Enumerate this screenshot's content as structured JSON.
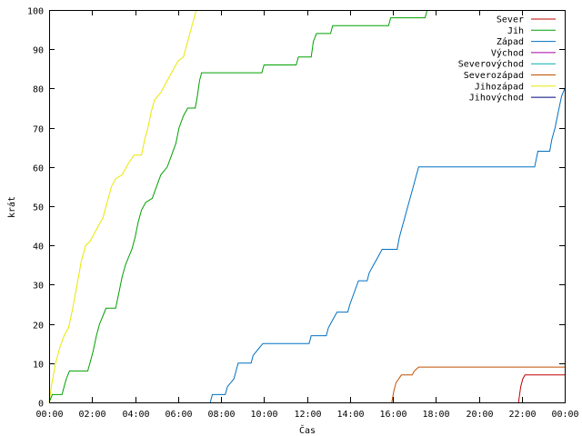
{
  "chart_data": {
    "type": "line",
    "title": "",
    "xlabel": "Čas",
    "ylabel": "krát",
    "xlim": [
      0,
      24
    ],
    "ylim": [
      0,
      100
    ],
    "x_ticks": [
      {
        "v": 0,
        "label": "00:00"
      },
      {
        "v": 2,
        "label": "02:00"
      },
      {
        "v": 4,
        "label": "04:00"
      },
      {
        "v": 6,
        "label": "06:00"
      },
      {
        "v": 8,
        "label": "08:00"
      },
      {
        "v": 10,
        "label": "10:00"
      },
      {
        "v": 12,
        "label": "12:00"
      },
      {
        "v": 14,
        "label": "14:00"
      },
      {
        "v": 16,
        "label": "16:00"
      },
      {
        "v": 18,
        "label": "18:00"
      },
      {
        "v": 20,
        "label": "20:00"
      },
      {
        "v": 22,
        "label": "22:00"
      },
      {
        "v": 24,
        "label": "00:00"
      }
    ],
    "y_ticks": [
      0,
      10,
      20,
      30,
      40,
      50,
      60,
      70,
      80,
      90,
      100
    ],
    "grid": false,
    "legend_position": "top-right",
    "series": [
      {
        "name": "Sever",
        "color": "#c00000",
        "points": [
          [
            21.85,
            0
          ],
          [
            21.9,
            2
          ],
          [
            21.95,
            4
          ],
          [
            22.05,
            6
          ],
          [
            22.15,
            7
          ],
          [
            24,
            7
          ]
        ]
      },
      {
        "name": "Jih",
        "color": "#00a000",
        "points": [
          [
            0,
            0
          ],
          [
            0.15,
            2
          ],
          [
            0.6,
            2
          ],
          [
            0.7,
            4
          ],
          [
            0.8,
            6
          ],
          [
            0.95,
            8
          ],
          [
            1.8,
            8
          ],
          [
            1.9,
            10
          ],
          [
            2.05,
            13
          ],
          [
            2.2,
            17
          ],
          [
            2.35,
            20
          ],
          [
            2.5,
            22
          ],
          [
            2.65,
            24
          ],
          [
            3.1,
            24
          ],
          [
            3.25,
            28
          ],
          [
            3.4,
            32
          ],
          [
            3.55,
            35
          ],
          [
            3.7,
            37
          ],
          [
            3.85,
            39
          ],
          [
            4.0,
            42
          ],
          [
            4.15,
            46
          ],
          [
            4.3,
            49
          ],
          [
            4.5,
            51
          ],
          [
            4.8,
            52
          ],
          [
            5.0,
            55
          ],
          [
            5.2,
            58
          ],
          [
            5.5,
            60
          ],
          [
            5.7,
            63
          ],
          [
            5.9,
            66
          ],
          [
            6.05,
            70
          ],
          [
            6.25,
            73
          ],
          [
            6.45,
            75
          ],
          [
            6.8,
            75
          ],
          [
            6.9,
            78
          ],
          [
            7.0,
            82
          ],
          [
            7.1,
            84
          ],
          [
            9.9,
            84
          ],
          [
            10.0,
            86
          ],
          [
            11.5,
            86
          ],
          [
            11.6,
            88
          ],
          [
            12.2,
            88
          ],
          [
            12.3,
            92
          ],
          [
            12.45,
            94
          ],
          [
            13.1,
            94
          ],
          [
            13.2,
            96
          ],
          [
            15.8,
            96
          ],
          [
            15.9,
            98
          ],
          [
            17.5,
            98
          ],
          [
            17.6,
            100
          ]
        ]
      },
      {
        "name": "Západ",
        "color": "#0070c0",
        "points": [
          [
            7.5,
            0
          ],
          [
            7.6,
            2
          ],
          [
            8.2,
            2
          ],
          [
            8.3,
            4
          ],
          [
            8.6,
            6
          ],
          [
            8.8,
            10
          ],
          [
            9.4,
            10
          ],
          [
            9.5,
            12
          ],
          [
            9.8,
            14
          ],
          [
            9.95,
            15
          ],
          [
            12.1,
            15
          ],
          [
            12.2,
            17
          ],
          [
            12.9,
            17
          ],
          [
            13.0,
            19
          ],
          [
            13.2,
            21
          ],
          [
            13.4,
            23
          ],
          [
            13.9,
            23
          ],
          [
            14.0,
            25
          ],
          [
            14.2,
            28
          ],
          [
            14.4,
            31
          ],
          [
            14.8,
            31
          ],
          [
            14.9,
            33
          ],
          [
            15.1,
            35
          ],
          [
            15.3,
            37
          ],
          [
            15.5,
            39
          ],
          [
            16.2,
            39
          ],
          [
            16.3,
            42
          ],
          [
            16.45,
            45
          ],
          [
            16.6,
            48
          ],
          [
            16.75,
            51
          ],
          [
            16.9,
            54
          ],
          [
            17.05,
            57
          ],
          [
            17.2,
            60
          ],
          [
            22.6,
            60
          ],
          [
            22.75,
            64
          ],
          [
            23.3,
            64
          ],
          [
            23.4,
            67
          ],
          [
            23.55,
            70
          ],
          [
            23.7,
            74
          ],
          [
            23.85,
            78
          ],
          [
            24,
            80
          ]
        ]
      },
      {
        "name": "Východ",
        "color": "#a000a0",
        "points": []
      },
      {
        "name": "Severovýchod",
        "color": "#00b0b0",
        "points": []
      },
      {
        "name": "Severozápad",
        "color": "#c05000",
        "points": [
          [
            15.95,
            0
          ],
          [
            16.05,
            3
          ],
          [
            16.15,
            5
          ],
          [
            16.4,
            7
          ],
          [
            16.9,
            7
          ],
          [
            17.0,
            8
          ],
          [
            17.2,
            9
          ],
          [
            24,
            9
          ]
        ]
      },
      {
        "name": "Jihozápad",
        "color": "#e8e800",
        "points": [
          [
            0,
            0
          ],
          [
            0.1,
            4
          ],
          [
            0.3,
            10
          ],
          [
            0.5,
            14
          ],
          [
            0.7,
            17
          ],
          [
            0.9,
            19
          ],
          [
            1.1,
            24
          ],
          [
            1.3,
            30
          ],
          [
            1.5,
            36
          ],
          [
            1.7,
            40
          ],
          [
            1.9,
            41
          ],
          [
            2.1,
            43
          ],
          [
            2.3,
            45
          ],
          [
            2.5,
            47
          ],
          [
            2.7,
            51
          ],
          [
            2.9,
            55
          ],
          [
            3.1,
            57
          ],
          [
            3.4,
            58
          ],
          [
            3.7,
            61
          ],
          [
            3.95,
            63
          ],
          [
            4.3,
            63
          ],
          [
            4.45,
            67
          ],
          [
            4.6,
            70
          ],
          [
            4.75,
            74
          ],
          [
            4.9,
            77
          ],
          [
            5.2,
            79
          ],
          [
            5.5,
            82
          ],
          [
            5.8,
            85
          ],
          [
            6.0,
            87
          ],
          [
            6.25,
            88
          ],
          [
            6.45,
            92
          ],
          [
            6.6,
            95
          ],
          [
            6.75,
            98
          ],
          [
            6.85,
            100
          ]
        ]
      },
      {
        "name": "Jihovýchod",
        "color": "#000080",
        "points": []
      }
    ]
  }
}
